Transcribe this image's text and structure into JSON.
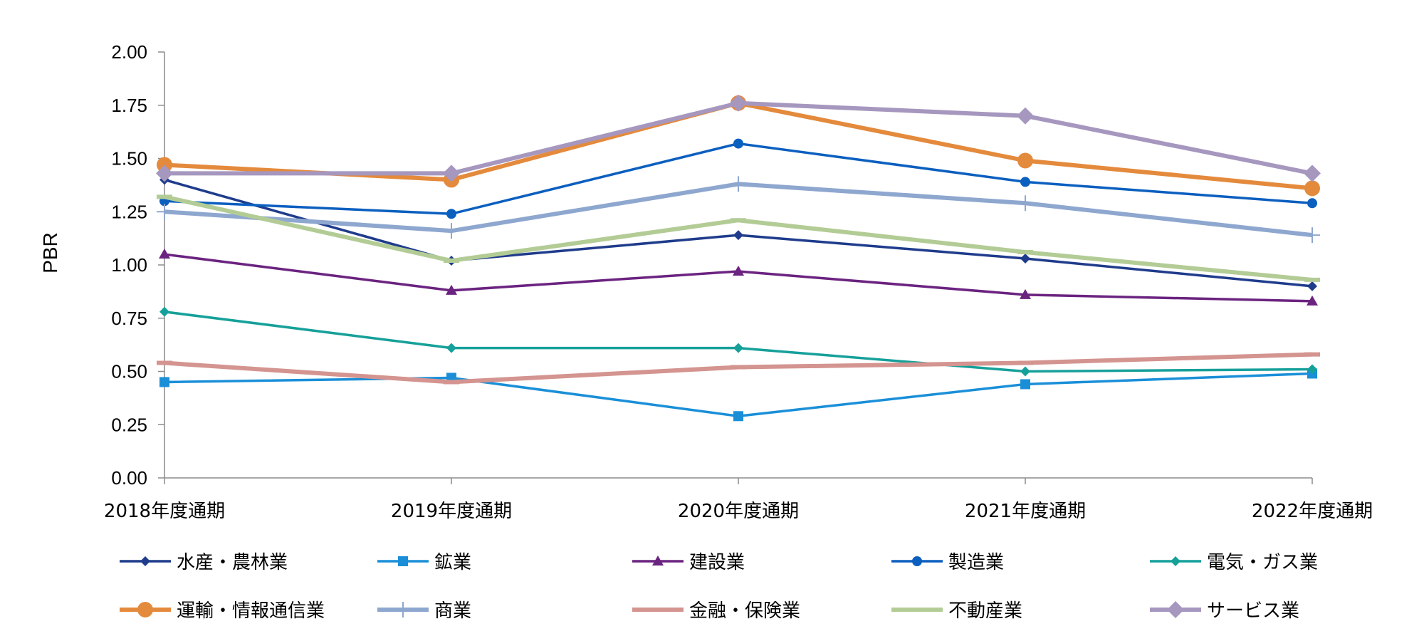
{
  "chart_data": {
    "type": "line",
    "title": "",
    "xlabel": "",
    "ylabel": "PBR",
    "ylim": [
      0,
      2.0
    ],
    "yticks": [
      "0.00",
      "0.25",
      "0.50",
      "0.75",
      "1.00",
      "1.25",
      "1.50",
      "1.75",
      "2.00"
    ],
    "ytick_values": [
      0,
      0.25,
      0.5,
      0.75,
      1.0,
      1.25,
      1.5,
      1.75,
      2.0
    ],
    "grid": false,
    "legend_position": "bottom",
    "categories": [
      "2018年度通期",
      "2019年度通期",
      "2020年度通期",
      "2021年度通期",
      "2022年度通期"
    ],
    "series": [
      {
        "name": "水産・農林業",
        "color": "#1f3c8c",
        "marker": "diamond",
        "weight": "thin",
        "values": [
          1.4,
          1.02,
          1.14,
          1.03,
          0.9
        ]
      },
      {
        "name": "鉱業",
        "color": "#1a8fd8",
        "marker": "square",
        "weight": "thin",
        "values": [
          0.45,
          0.47,
          0.29,
          0.44,
          0.49
        ]
      },
      {
        "name": "建設業",
        "color": "#6b2380",
        "marker": "triangle",
        "weight": "thin",
        "values": [
          1.05,
          0.88,
          0.97,
          0.86,
          0.83
        ]
      },
      {
        "name": "製造業",
        "color": "#0b5fbf",
        "marker": "circle",
        "weight": "thin",
        "values": [
          1.3,
          1.24,
          1.57,
          1.39,
          1.29
        ]
      },
      {
        "name": "電気・ガス業",
        "color": "#16a09a",
        "marker": "diamond",
        "weight": "thin",
        "values": [
          0.78,
          0.61,
          0.61,
          0.5,
          0.51
        ]
      },
      {
        "name": "運輸・情報通信業",
        "color": "#e48a3c",
        "marker": "circle-large",
        "weight": "thick",
        "values": [
          1.47,
          1.4,
          1.76,
          1.49,
          1.36
        ]
      },
      {
        "name": "商業",
        "color": "#8ea7cf",
        "marker": "plus",
        "weight": "thick",
        "values": [
          1.25,
          1.16,
          1.38,
          1.29,
          1.14
        ]
      },
      {
        "name": "金融・保険業",
        "color": "#d49490",
        "marker": "dash",
        "weight": "thick",
        "values": [
          0.54,
          0.45,
          0.52,
          0.54,
          0.58
        ]
      },
      {
        "name": "不動産業",
        "color": "#b3cc96",
        "marker": "dash",
        "weight": "thick",
        "values": [
          1.32,
          1.02,
          1.21,
          1.06,
          0.93
        ]
      },
      {
        "name": "サービス業",
        "color": "#a697bf",
        "marker": "diamond-large",
        "weight": "thick",
        "values": [
          1.43,
          1.43,
          1.76,
          1.7,
          1.43
        ]
      }
    ]
  }
}
